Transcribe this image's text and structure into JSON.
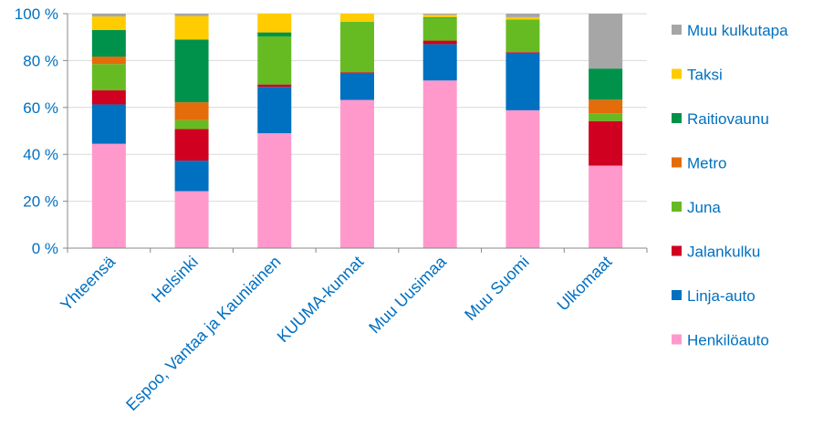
{
  "chart_data": {
    "type": "bar",
    "stacked": true,
    "categories": [
      "Yhteensä",
      "Helsinki",
      "Espoo, Vantaa ja Kauniainen",
      "KUUMA-kunnat",
      "Muu Uusimaa",
      "Muu Suomi",
      "Ulkomaat"
    ],
    "series": [
      {
        "name": "Henkilöauto",
        "color": "#ff99cc",
        "values": [
          44.5,
          24.3,
          49.0,
          63.2,
          71.5,
          58.8,
          35.2
        ]
      },
      {
        "name": "Linja-auto",
        "color": "#0070c0",
        "values": [
          16.8,
          13.0,
          19.8,
          11.5,
          15.5,
          24.5,
          0.0
        ]
      },
      {
        "name": "Jalankulku",
        "color": "#d00020",
        "values": [
          6.0,
          13.5,
          1.0,
          0.3,
          1.5,
          0.3,
          19.0
        ]
      },
      {
        "name": "Juna",
        "color": "#66bb22",
        "values": [
          11.2,
          3.8,
          20.5,
          21.5,
          9.7,
          13.9,
          3.3
        ]
      },
      {
        "name": "Metro",
        "color": "#e46c0a",
        "values": [
          3.2,
          7.6,
          0.0,
          0.0,
          0.0,
          0.0,
          5.8
        ]
      },
      {
        "name": "Raitiovaunu",
        "color": "#00924a",
        "values": [
          11.3,
          26.8,
          1.7,
          0.0,
          0.3,
          0.0,
          13.3
        ]
      },
      {
        "name": "Taksi",
        "color": "#ffcc00",
        "values": [
          5.8,
          10.0,
          8.0,
          3.5,
          1.0,
          1.0,
          0.0
        ]
      },
      {
        "name": "Muu kulkutapa",
        "color": "#a6a6a6",
        "values": [
          1.2,
          1.0,
          0.0,
          0.0,
          0.5,
          1.5,
          23.4
        ]
      }
    ],
    "y_ticks": [
      "0 %",
      "20 %",
      "40 %",
      "60 %",
      "80 %",
      "100 %"
    ],
    "ylim": [
      0,
      100
    ],
    "grid": true,
    "legend_position": "right",
    "legend_order": [
      "Muu kulkutapa",
      "Taksi",
      "Raitiovaunu",
      "Metro",
      "Juna",
      "Jalankulku",
      "Linja-auto",
      "Henkilöauto"
    ]
  }
}
